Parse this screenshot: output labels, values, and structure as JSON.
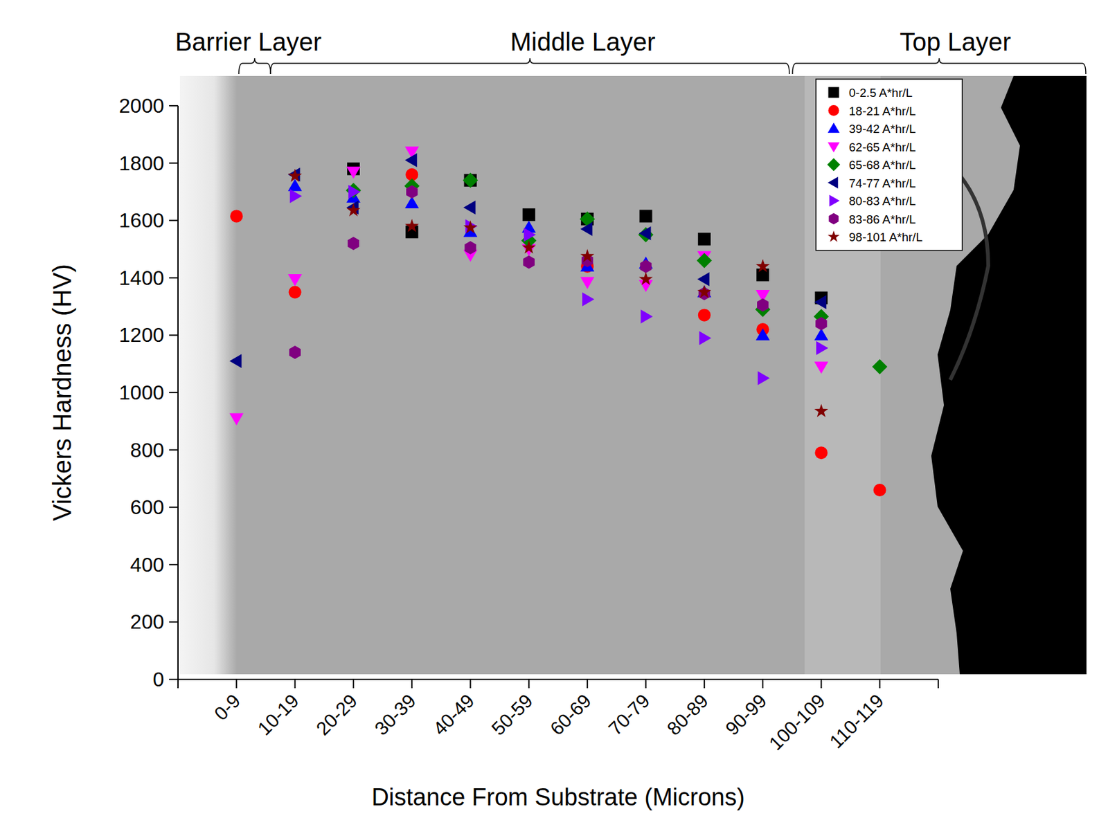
{
  "chart_data": {
    "type": "scatter",
    "x_label": "Distance From Substrate (Microns)",
    "y_label": "Vickers Hardness (HV)",
    "annotations": [
      "Barrier Layer",
      "Middle Layer",
      "Top Layer"
    ],
    "categories": [
      null,
      "0-9",
      "10-19",
      "20-29",
      "30-39",
      "40-49",
      "50-59",
      "60-69",
      "70-79",
      "80-89",
      "90-99",
      "100-109",
      "110-119",
      null
    ],
    "ylim": [
      0,
      2000
    ],
    "yticks": [
      0,
      200,
      400,
      600,
      800,
      1000,
      1200,
      1400,
      1600,
      1800,
      2000
    ],
    "legend": "top-right",
    "series": [
      {
        "name": "0-2.5 A*hr/L",
        "color": "#000000",
        "marker": "square",
        "values": [
          null,
          null,
          null,
          1780,
          1560,
          1740,
          1620,
          1605,
          1615,
          1535,
          1410,
          1330,
          null,
          null
        ]
      },
      {
        "name": "18-21 A*hr/L",
        "color": "#ff0000",
        "marker": "circle",
        "values": [
          null,
          1615,
          1350,
          null,
          1760,
          null,
          null,
          1440,
          null,
          1270,
          1220,
          790,
          660,
          null
        ]
      },
      {
        "name": "39-42 A*hr/L",
        "color": "#0000ff",
        "marker": "triangle-up",
        "values": [
          null,
          null,
          1720,
          1680,
          1660,
          1560,
          1575,
          1440,
          1450,
          1350,
          1200,
          1200,
          null,
          null
        ]
      },
      {
        "name": "62-65 A*hr/L",
        "color": "#ff00ff",
        "marker": "triangle-down",
        "values": [
          null,
          910,
          1395,
          1770,
          1840,
          1480,
          1500,
          1385,
          1375,
          1475,
          1340,
          1090,
          null,
          null
        ]
      },
      {
        "name": "65-68 A*hr/L",
        "color": "#008000",
        "marker": "diamond",
        "values": [
          null,
          null,
          null,
          1705,
          1720,
          1740,
          1530,
          1605,
          1550,
          1460,
          1290,
          1265,
          1090,
          null
        ]
      },
      {
        "name": "74-77 A*hr/L",
        "color": "#000080",
        "marker": "triangle-left",
        "values": [
          null,
          1110,
          1760,
          1645,
          1810,
          1645,
          null,
          1570,
          1555,
          1395,
          null,
          1315,
          null,
          null
        ]
      },
      {
        "name": "80-83 A*hr/L",
        "color": "#8000ff",
        "marker": "triangle-right",
        "values": [
          null,
          null,
          1685,
          1700,
          null,
          1580,
          1550,
          1325,
          1265,
          1190,
          1050,
          1155,
          null,
          null
        ]
      },
      {
        "name": "83-86 A*hr/L",
        "color": "#800080",
        "marker": "hexagon",
        "values": [
          null,
          null,
          1140,
          1520,
          1700,
          1505,
          1455,
          1460,
          1440,
          1345,
          1305,
          1240,
          null,
          null
        ]
      },
      {
        "name": "98-101 A*hr/L",
        "color": "#800000",
        "marker": "star",
        "values": [
          null,
          null,
          1755,
          1635,
          1580,
          1575,
          1505,
          1475,
          1395,
          1350,
          1440,
          935,
          null,
          null
        ]
      }
    ]
  }
}
